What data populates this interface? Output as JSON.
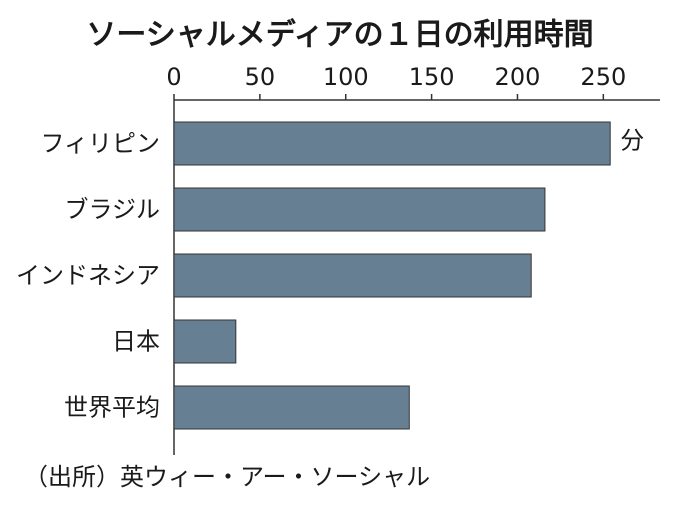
{
  "chart_data": {
    "type": "bar",
    "orientation": "horizontal",
    "title": "ソーシャルメディアの１日の利用時間",
    "categories": [
      "フィリピン",
      "ブラジル",
      "インドネシア",
      "日本",
      "世界平均"
    ],
    "values": [
      254,
      216,
      208,
      36,
      137
    ],
    "unit": "分",
    "color": "#677f93",
    "xlim": [
      0,
      283
    ],
    "xticks": [
      0,
      50,
      100,
      150,
      200,
      250
    ],
    "source": "（出所）英ウィー・アー・ソーシャル"
  }
}
